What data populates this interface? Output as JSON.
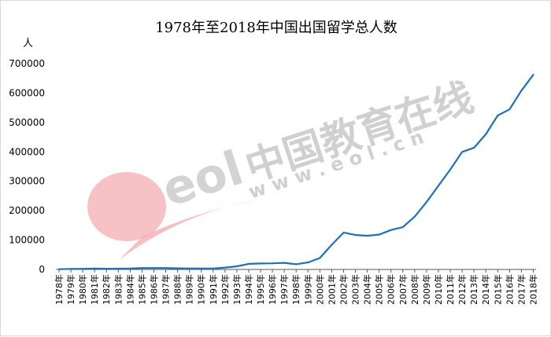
{
  "chart_data": {
    "type": "line",
    "title": "1978年至2018年中国出国留学总人数",
    "ylabel": "人",
    "xlabel": "",
    "ylim": [
      0,
      700000
    ],
    "yticks": [
      "0",
      "100000",
      "200000",
      "300000",
      "400000",
      "500000",
      "600000",
      "700000"
    ],
    "grid": false,
    "legend": "none",
    "categories": [
      "1978年",
      "1979年",
      "1980年",
      "1981年",
      "1982年",
      "1983年",
      "1984年",
      "1985年",
      "1986年",
      "1987年",
      "1988年",
      "1989年",
      "1990年",
      "1991年",
      "1992年",
      "1993年",
      "1994年",
      "1995年",
      "1996年",
      "1997年",
      "1998年",
      "1999年",
      "2000年",
      "2001年",
      "2002年",
      "2003年",
      "2004年",
      "2005年",
      "2006年",
      "2007年",
      "2008年",
      "2009年",
      "2010年",
      "2011年",
      "2012年",
      "2013年",
      "2014年",
      "2015年",
      "2016年",
      "2017年",
      "2018年"
    ],
    "series": [
      {
        "values": [
          860,
          1777,
          2124,
          2922,
          2326,
          2633,
          3073,
          4888,
          4676,
          4703,
          3786,
          3329,
          2950,
          2900,
          6540,
          10742,
          19071,
          20381,
          20905,
          22410,
          17622,
          23749,
          38989,
          83973,
          125179,
          117307,
          114682,
          118515,
          134000,
          144000,
          179800,
          229300,
          284700,
          339700,
          399600,
          413900,
          459800,
          523700,
          544500,
          608400,
          662100
        ]
      }
    ],
    "colors": {
      "line": "#1f6fb8",
      "axis": "#595959"
    }
  },
  "watermark": {
    "brand_cn": "中国教育在线",
    "url": "w w w . e o l . c n",
    "logo_text": "eol",
    "colors": {
      "gray": "#c8c8c8",
      "pink": "#f4b3b8"
    }
  }
}
